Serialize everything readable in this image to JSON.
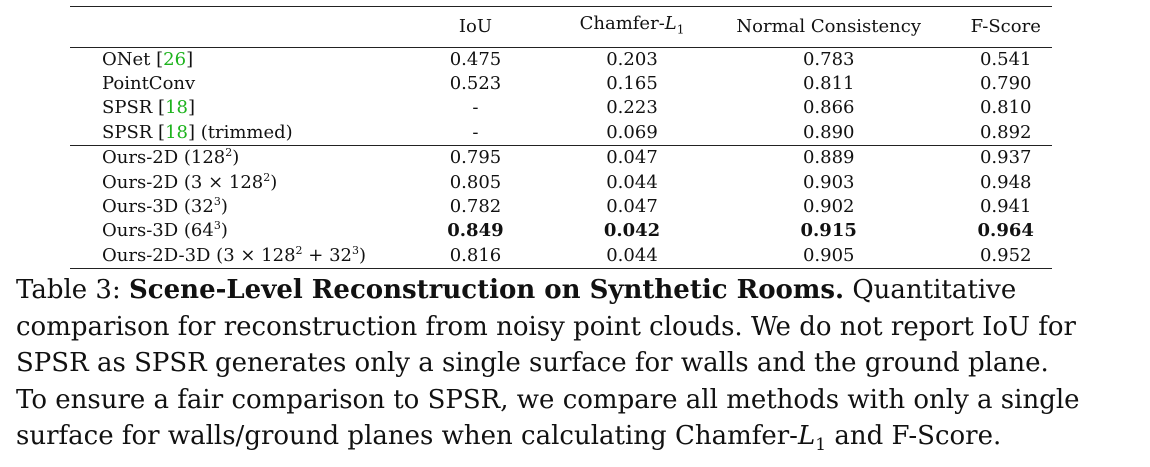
{
  "table": {
    "headers": [
      "",
      "IoU",
      "Chamfer-",
      "L",
      "1",
      "Normal Consistency",
      "F-Score"
    ],
    "group1": [
      {
        "method": "ONet",
        "cite": "26",
        "suffix": "",
        "iou": "0.475",
        "chamfer": "0.203",
        "normal": "0.783",
        "fscore": "0.541"
      },
      {
        "method": "PointConv",
        "cite": "",
        "suffix": "",
        "iou": "0.523",
        "chamfer": "0.165",
        "normal": "0.811",
        "fscore": "0.790"
      },
      {
        "method": "SPSR",
        "cite": "18",
        "suffix": "",
        "iou": "-",
        "chamfer": "0.223",
        "normal": "0.866",
        "fscore": "0.810"
      },
      {
        "method": "SPSR",
        "cite": "18",
        "suffix": "(trimmed)",
        "iou": "-",
        "chamfer": "0.069",
        "normal": "0.890",
        "fscore": "0.892"
      }
    ],
    "group2": [
      {
        "method": "Ours-2D (128",
        "sup": "2",
        "tail": ")",
        "iou": "0.795",
        "chamfer": "0.047",
        "normal": "0.889",
        "fscore": "0.937"
      },
      {
        "method": "Ours-2D (3 × 128",
        "sup": "2",
        "tail": ")",
        "iou": "0.805",
        "chamfer": "0.044",
        "normal": "0.903",
        "fscore": "0.948"
      },
      {
        "method": "Ours-3D (32",
        "sup": "3",
        "tail": ")",
        "iou": "0.782",
        "chamfer": "0.047",
        "normal": "0.902",
        "fscore": "0.941"
      },
      {
        "method": "Ours-3D (64",
        "sup": "3",
        "tail": ")",
        "iou": "0.849",
        "chamfer": "0.042",
        "normal": "0.915",
        "fscore": "0.964"
      },
      {
        "method": "Ours-2D-3D (3 × 128",
        "sup": "2",
        "mid": " + 32",
        "sup2": "3",
        "tail": ")",
        "iou": "0.816",
        "chamfer": "0.044",
        "normal": "0.905",
        "fscore": "0.952"
      }
    ]
  },
  "caption": {
    "label": "Table 3:",
    "title": "Scene-Level Reconstruction on Synthetic Rooms.",
    "lines": [
      " Quantitative",
      "comparison for reconstruction from noisy point clouds. We do not report IoU for",
      "SPSR as SPSR generates only a single surface for walls and the ground plane.",
      "To ensure a fair comparison to SPSR, we compare all methods with only a single",
      "surface for walls/ground planes when calculating Chamfer-"
    ],
    "math_L": "L",
    "math_sub": "1",
    "end": " and F-Score."
  }
}
